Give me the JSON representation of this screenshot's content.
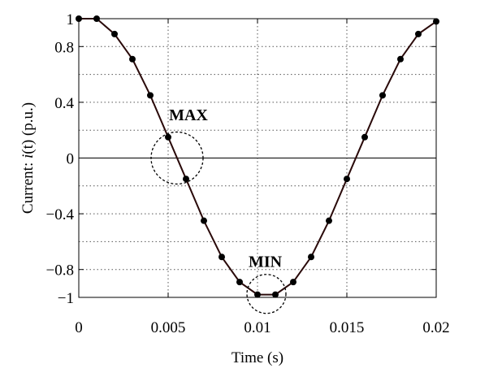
{
  "chart_data": {
    "type": "line",
    "xlabel": "Time (s)",
    "ylabel_parts": [
      "Current: ",
      "i",
      "(t) (p.u.)"
    ],
    "xlim": [
      0,
      0.02
    ],
    "ylim": [
      -1,
      1
    ],
    "x_ticks": [
      0,
      0.005,
      0.01,
      0.015,
      0.02
    ],
    "x_tick_labels": [
      "0",
      "0.005",
      "0.01",
      "0.015",
      "0.02"
    ],
    "y_ticks": [
      -1,
      -0.8,
      -0.4,
      0,
      0.4,
      0.8,
      1
    ],
    "y_tick_labels": [
      "−1",
      "−0.8",
      "−0.4",
      "0",
      "0.4",
      "0.8",
      "1"
    ],
    "grid": true,
    "series": [
      {
        "x": [
          0,
          0.001,
          0.002,
          0.003,
          0.004,
          0.005,
          0.006,
          0.007,
          0.008,
          0.009,
          0.01,
          0.011,
          0.012,
          0.013,
          0.014,
          0.015,
          0.016,
          0.017,
          0.018,
          0.019,
          0.02
        ],
        "y": [
          1,
          1,
          0.89,
          0.71,
          0.45,
          0.15,
          -0.15,
          -0.45,
          -0.71,
          -0.89,
          -0.98,
          -0.98,
          -0.89,
          -0.71,
          -0.45,
          -0.15,
          0.15,
          0.45,
          0.71,
          0.89,
          0.98
        ],
        "color": "#2a0a0a"
      }
    ],
    "annotations": [
      {
        "label": "MAX",
        "cx": 0.0055,
        "cy": 0.0,
        "label_x": 0.00505,
        "label_y": 0.27
      },
      {
        "label": "MIN",
        "cx": 0.0105,
        "cy": -0.975,
        "label_x": 0.0095,
        "label_y": -0.78
      }
    ]
  }
}
